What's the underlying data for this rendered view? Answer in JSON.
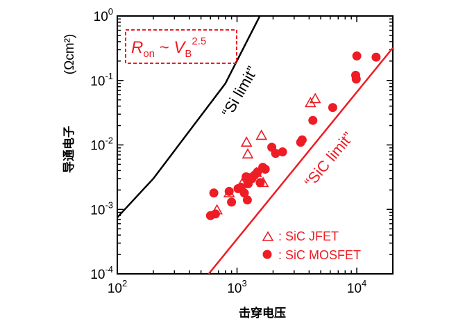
{
  "chart_data": {
    "type": "scatter",
    "title": "",
    "xlabel": "击穿电压",
    "ylabel": "导通电子",
    "ylabel_unit": "(Ωcm²)",
    "x_scale": "log",
    "y_scale": "log",
    "xlim": [
      100,
      20000
    ],
    "ylim": [
      0.0001,
      1
    ],
    "x_ticks": [
      {
        "value": 100,
        "base": "10",
        "exp": "2"
      },
      {
        "value": 1000,
        "base": "10",
        "exp": "3"
      },
      {
        "value": 10000,
        "base": "10",
        "exp": "4"
      }
    ],
    "y_ticks": [
      {
        "value": 1,
        "base": "10",
        "exp": "0"
      },
      {
        "value": 0.1,
        "base": "10",
        "exp": "-1"
      },
      {
        "value": 0.01,
        "base": "10",
        "exp": "-2"
      },
      {
        "value": 0.001,
        "base": "10",
        "exp": "-3"
      },
      {
        "value": 0.0001,
        "base": "10",
        "exp": "-4"
      }
    ],
    "formula": {
      "r": "R",
      "r_sub": "on",
      "tilde": " ~ ",
      "v": "V",
      "v_sub": "B",
      "v_exp": "2.5"
    },
    "lines": [
      {
        "name": "“Si limit”",
        "color": "#000000",
        "points": [
          [
            100,
            0.00075
          ],
          [
            200,
            0.003
          ],
          [
            800,
            0.09
          ],
          [
            1550,
            1.0
          ]
        ]
      },
      {
        "name": "“SiC limit”",
        "color": "#ee1c24",
        "points": [
          [
            580,
            0.0001
          ],
          [
            20000,
            0.32
          ]
        ]
      }
    ],
    "series": [
      {
        "name": ": SiC JFET",
        "marker": "triangle-open",
        "color": "#ee1c24",
        "points": [
          [
            680,
            0.00098
          ],
          [
            860,
            0.0018
          ],
          [
            1100,
            0.0025
          ],
          [
            1200,
            0.011
          ],
          [
            1230,
            0.0072
          ],
          [
            1450,
            0.0037
          ],
          [
            1600,
            0.014
          ],
          [
            1650,
            0.0026
          ],
          [
            4100,
            0.045
          ],
          [
            4500,
            0.052
          ]
        ]
      },
      {
        "name": ": SiC MOSFET",
        "marker": "circle-filled",
        "color": "#ee1c24",
        "points": [
          [
            600,
            0.0008
          ],
          [
            640,
            0.0018
          ],
          [
            660,
            0.00085
          ],
          [
            860,
            0.0019
          ],
          [
            900,
            0.0013
          ],
          [
            1020,
            0.0021
          ],
          [
            1080,
            0.0022
          ],
          [
            1150,
            0.0018
          ],
          [
            1190,
            0.0032
          ],
          [
            1220,
            0.0014
          ],
          [
            1240,
            0.0025
          ],
          [
            1270,
            0.0031
          ],
          [
            1330,
            0.003
          ],
          [
            1400,
            0.0034
          ],
          [
            1480,
            0.0038
          ],
          [
            1560,
            0.0026
          ],
          [
            1640,
            0.0045
          ],
          [
            1720,
            0.0042
          ],
          [
            1950,
            0.0092
          ],
          [
            2100,
            0.0074
          ],
          [
            2400,
            0.0078
          ],
          [
            3400,
            0.011
          ],
          [
            3500,
            0.012
          ],
          [
            4300,
            0.024
          ],
          [
            6300,
            0.038
          ],
          [
            9800,
            0.12
          ],
          [
            9900,
            0.105
          ],
          [
            10000,
            0.24
          ],
          [
            14500,
            0.23
          ]
        ]
      }
    ]
  }
}
